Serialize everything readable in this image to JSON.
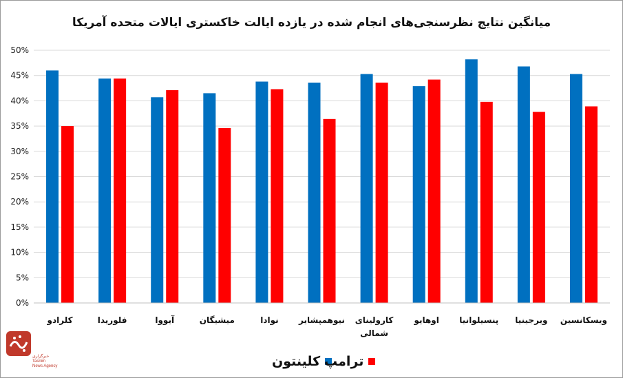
{
  "chart_data": {
    "type": "bar",
    "title": "میانگین نتایج نظرسنجی‌های انجام شده در یازده ایالت خاکستری ایالات متحده آمریکا",
    "categories": [
      [
        "کلرادو"
      ],
      [
        "فلوریدا"
      ],
      [
        "آیووا"
      ],
      [
        "میشیگان"
      ],
      [
        "نوادا"
      ],
      [
        "نیوهمپشایر"
      ],
      [
        "کارولینای",
        "شمالی"
      ],
      [
        "اوهایو"
      ],
      [
        "پنسیلوانیا"
      ],
      [
        "ویرجینیا"
      ],
      [
        "ویسکانسین"
      ]
    ],
    "series": [
      {
        "name": "کلینتون",
        "color": "#0070C0",
        "values": [
          46.0,
          44.4,
          40.7,
          41.5,
          43.8,
          43.6,
          45.3,
          42.9,
          48.2,
          46.8,
          45.3
        ]
      },
      {
        "name": "ترامپ",
        "color": "#FF0000",
        "values": [
          35.0,
          44.4,
          42.1,
          34.6,
          42.3,
          36.4,
          43.6,
          44.2,
          39.8,
          37.8,
          38.9
        ]
      }
    ],
    "ylim": [
      0,
      50
    ],
    "yticks": [
      "0%",
      "5%",
      "10%",
      "15%",
      "20%",
      "25%",
      "30%",
      "35%",
      "40%",
      "45%",
      "50%"
    ],
    "grid": true,
    "legend_position": "bottom"
  },
  "logo": {
    "mark": "تسنیم",
    "text": [
      "خبرگزاری",
      "Tasnim",
      "News Agency"
    ],
    "color": "#c0392b"
  }
}
